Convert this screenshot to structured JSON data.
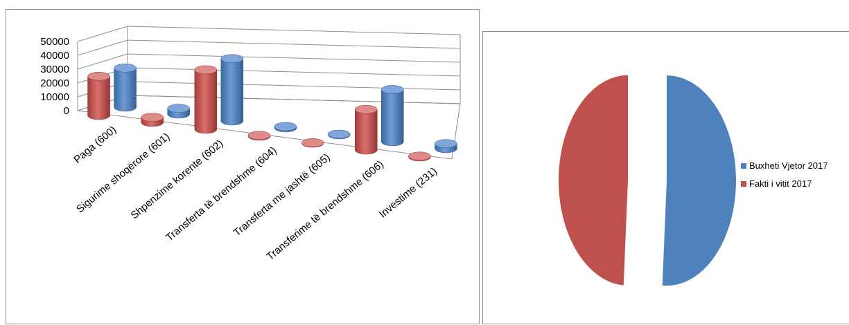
{
  "chart_data": [
    {
      "type": "bar",
      "style": "3d-cylinder",
      "categories": [
        "Paga (600)",
        "Sigurime shoqërore (601)",
        "Shpenzime korente (602)",
        "Transferta të brendshme (604)",
        "Transferta me jashtë (605)",
        "Transferime të brendshme (606)",
        "Investime (231)"
      ],
      "series": [
        {
          "name": "Buxheti Vjetor 2017",
          "color": "#4f81bd",
          "values": [
            27000,
            4000,
            43000,
            1000,
            500,
            36000,
            3500
          ]
        },
        {
          "name": "Fakti i vitit 2017",
          "color": "#c0504d",
          "values": [
            27000,
            3500,
            41000,
            600,
            300,
            28000,
            600
          ]
        }
      ],
      "y_ticks": [
        "50000",
        "40000",
        "30000",
        "20000",
        "10000",
        "0"
      ],
      "ylim": [
        0,
        50000
      ],
      "grid": true,
      "legend": "none"
    },
    {
      "type": "pie",
      "exploded": true,
      "categories": [
        "Buxheti Vjetor 2017",
        "Fakti i vitit 2017"
      ],
      "series": [
        {
          "values": [
            51,
            49
          ]
        }
      ],
      "colors": [
        "#4f81bd",
        "#c0504d"
      ],
      "legend": "right"
    }
  ]
}
